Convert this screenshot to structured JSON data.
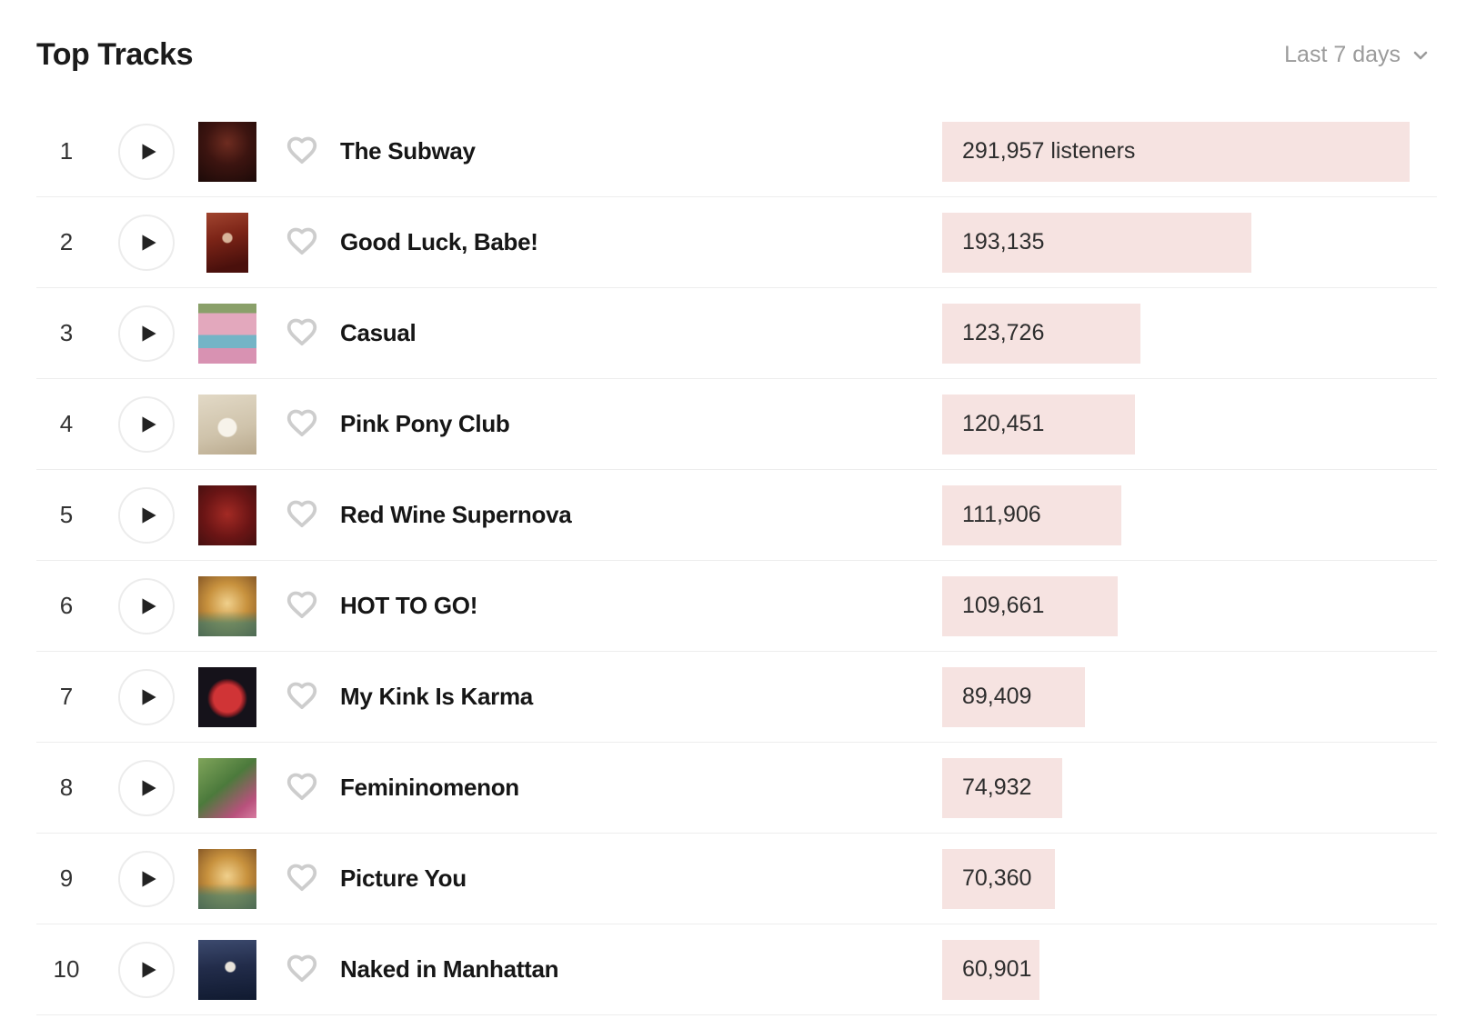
{
  "header": {
    "title": "Top Tracks",
    "range_label": "Last 7 days"
  },
  "colors": {
    "bar_fill": "#f6e3e1",
    "divider": "#ededed",
    "muted_text": "#9b9b9b",
    "title_text": "#1b1b1b"
  },
  "icons": {
    "chevron_down": "chevron-down-icon",
    "play": "play-icon",
    "heart": "heart-outline-icon"
  },
  "chart_data": {
    "type": "bar",
    "title": "Top Tracks",
    "categories": [
      "The Subway",
      "Good Luck, Babe!",
      "Casual",
      "Pink Pony Club",
      "Red Wine Supernova",
      "HOT TO GO!",
      "My Kink Is Karma",
      "Femininomenon",
      "Picture You",
      "Naked in Manhattan"
    ],
    "values": [
      291957,
      193135,
      123726,
      120451,
      111906,
      109661,
      89409,
      74932,
      70360,
      60901
    ],
    "ylabel": "listeners",
    "legend_position": "none",
    "grid": false
  },
  "tracks": [
    {
      "rank": "1",
      "title": "The Subway",
      "listeners": "291,957 listeners",
      "value": 291957,
      "art": "art-subway"
    },
    {
      "rank": "2",
      "title": "Good Luck, Babe!",
      "listeners": "193,135",
      "value": 193135,
      "art": "art-glb"
    },
    {
      "rank": "3",
      "title": "Casual",
      "listeners": "123,726",
      "value": 123726,
      "art": "art-casual"
    },
    {
      "rank": "4",
      "title": "Pink Pony Club",
      "listeners": "120,451",
      "value": 120451,
      "art": "art-ppc"
    },
    {
      "rank": "5",
      "title": "Red Wine Supernova",
      "listeners": "111,906",
      "value": 111906,
      "art": "art-rws"
    },
    {
      "rank": "6",
      "title": "HOT TO GO!",
      "listeners": "109,661",
      "value": 109661,
      "art": "art-mirror"
    },
    {
      "rank": "7",
      "title": "My Kink Is Karma",
      "listeners": "89,409",
      "value": 89409,
      "art": "art-mkik"
    },
    {
      "rank": "8",
      "title": "Femininomenon",
      "listeners": "74,932",
      "value": 74932,
      "art": "art-fem"
    },
    {
      "rank": "9",
      "title": "Picture You",
      "listeners": "70,360",
      "value": 70360,
      "art": "art-mirror"
    },
    {
      "rank": "10",
      "title": "Naked in Manhattan",
      "listeners": "60,901",
      "value": 60901,
      "art": "art-nim"
    }
  ]
}
